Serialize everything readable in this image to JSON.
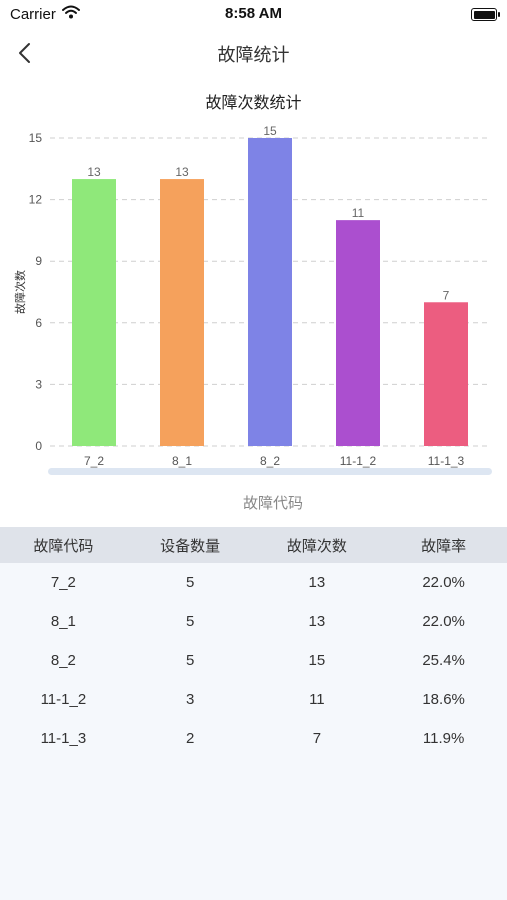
{
  "status_bar": {
    "carrier": "Carrier",
    "time": "8:58 AM"
  },
  "nav": {
    "title": "故障统计"
  },
  "chart_data": {
    "type": "bar",
    "title": "故障次数统计",
    "xlabel": "故障代码",
    "ylabel": "故障次数",
    "categories": [
      "7_2",
      "8_1",
      "8_2",
      "11-1_2",
      "11-1_3"
    ],
    "values": [
      13,
      13,
      15,
      11,
      7
    ],
    "colors": [
      "#8fe87a",
      "#f5a15c",
      "#7e83e6",
      "#ab4fcf",
      "#ec5d80"
    ],
    "ylim": [
      0,
      15
    ],
    "yticks": [
      0,
      3,
      6,
      9,
      12,
      15
    ],
    "grid": true,
    "legend": "none"
  },
  "table": {
    "headers": [
      "故障代码",
      "设备数量",
      "故障次数",
      "故障率"
    ],
    "rows": [
      [
        "7_2",
        "5",
        "13",
        "22.0%"
      ],
      [
        "8_1",
        "5",
        "13",
        "22.0%"
      ],
      [
        "8_2",
        "5",
        "15",
        "25.4%"
      ],
      [
        "11-1_2",
        "3",
        "11",
        "18.6%"
      ],
      [
        "11-1_3",
        "2",
        "7",
        "11.9%"
      ]
    ]
  }
}
